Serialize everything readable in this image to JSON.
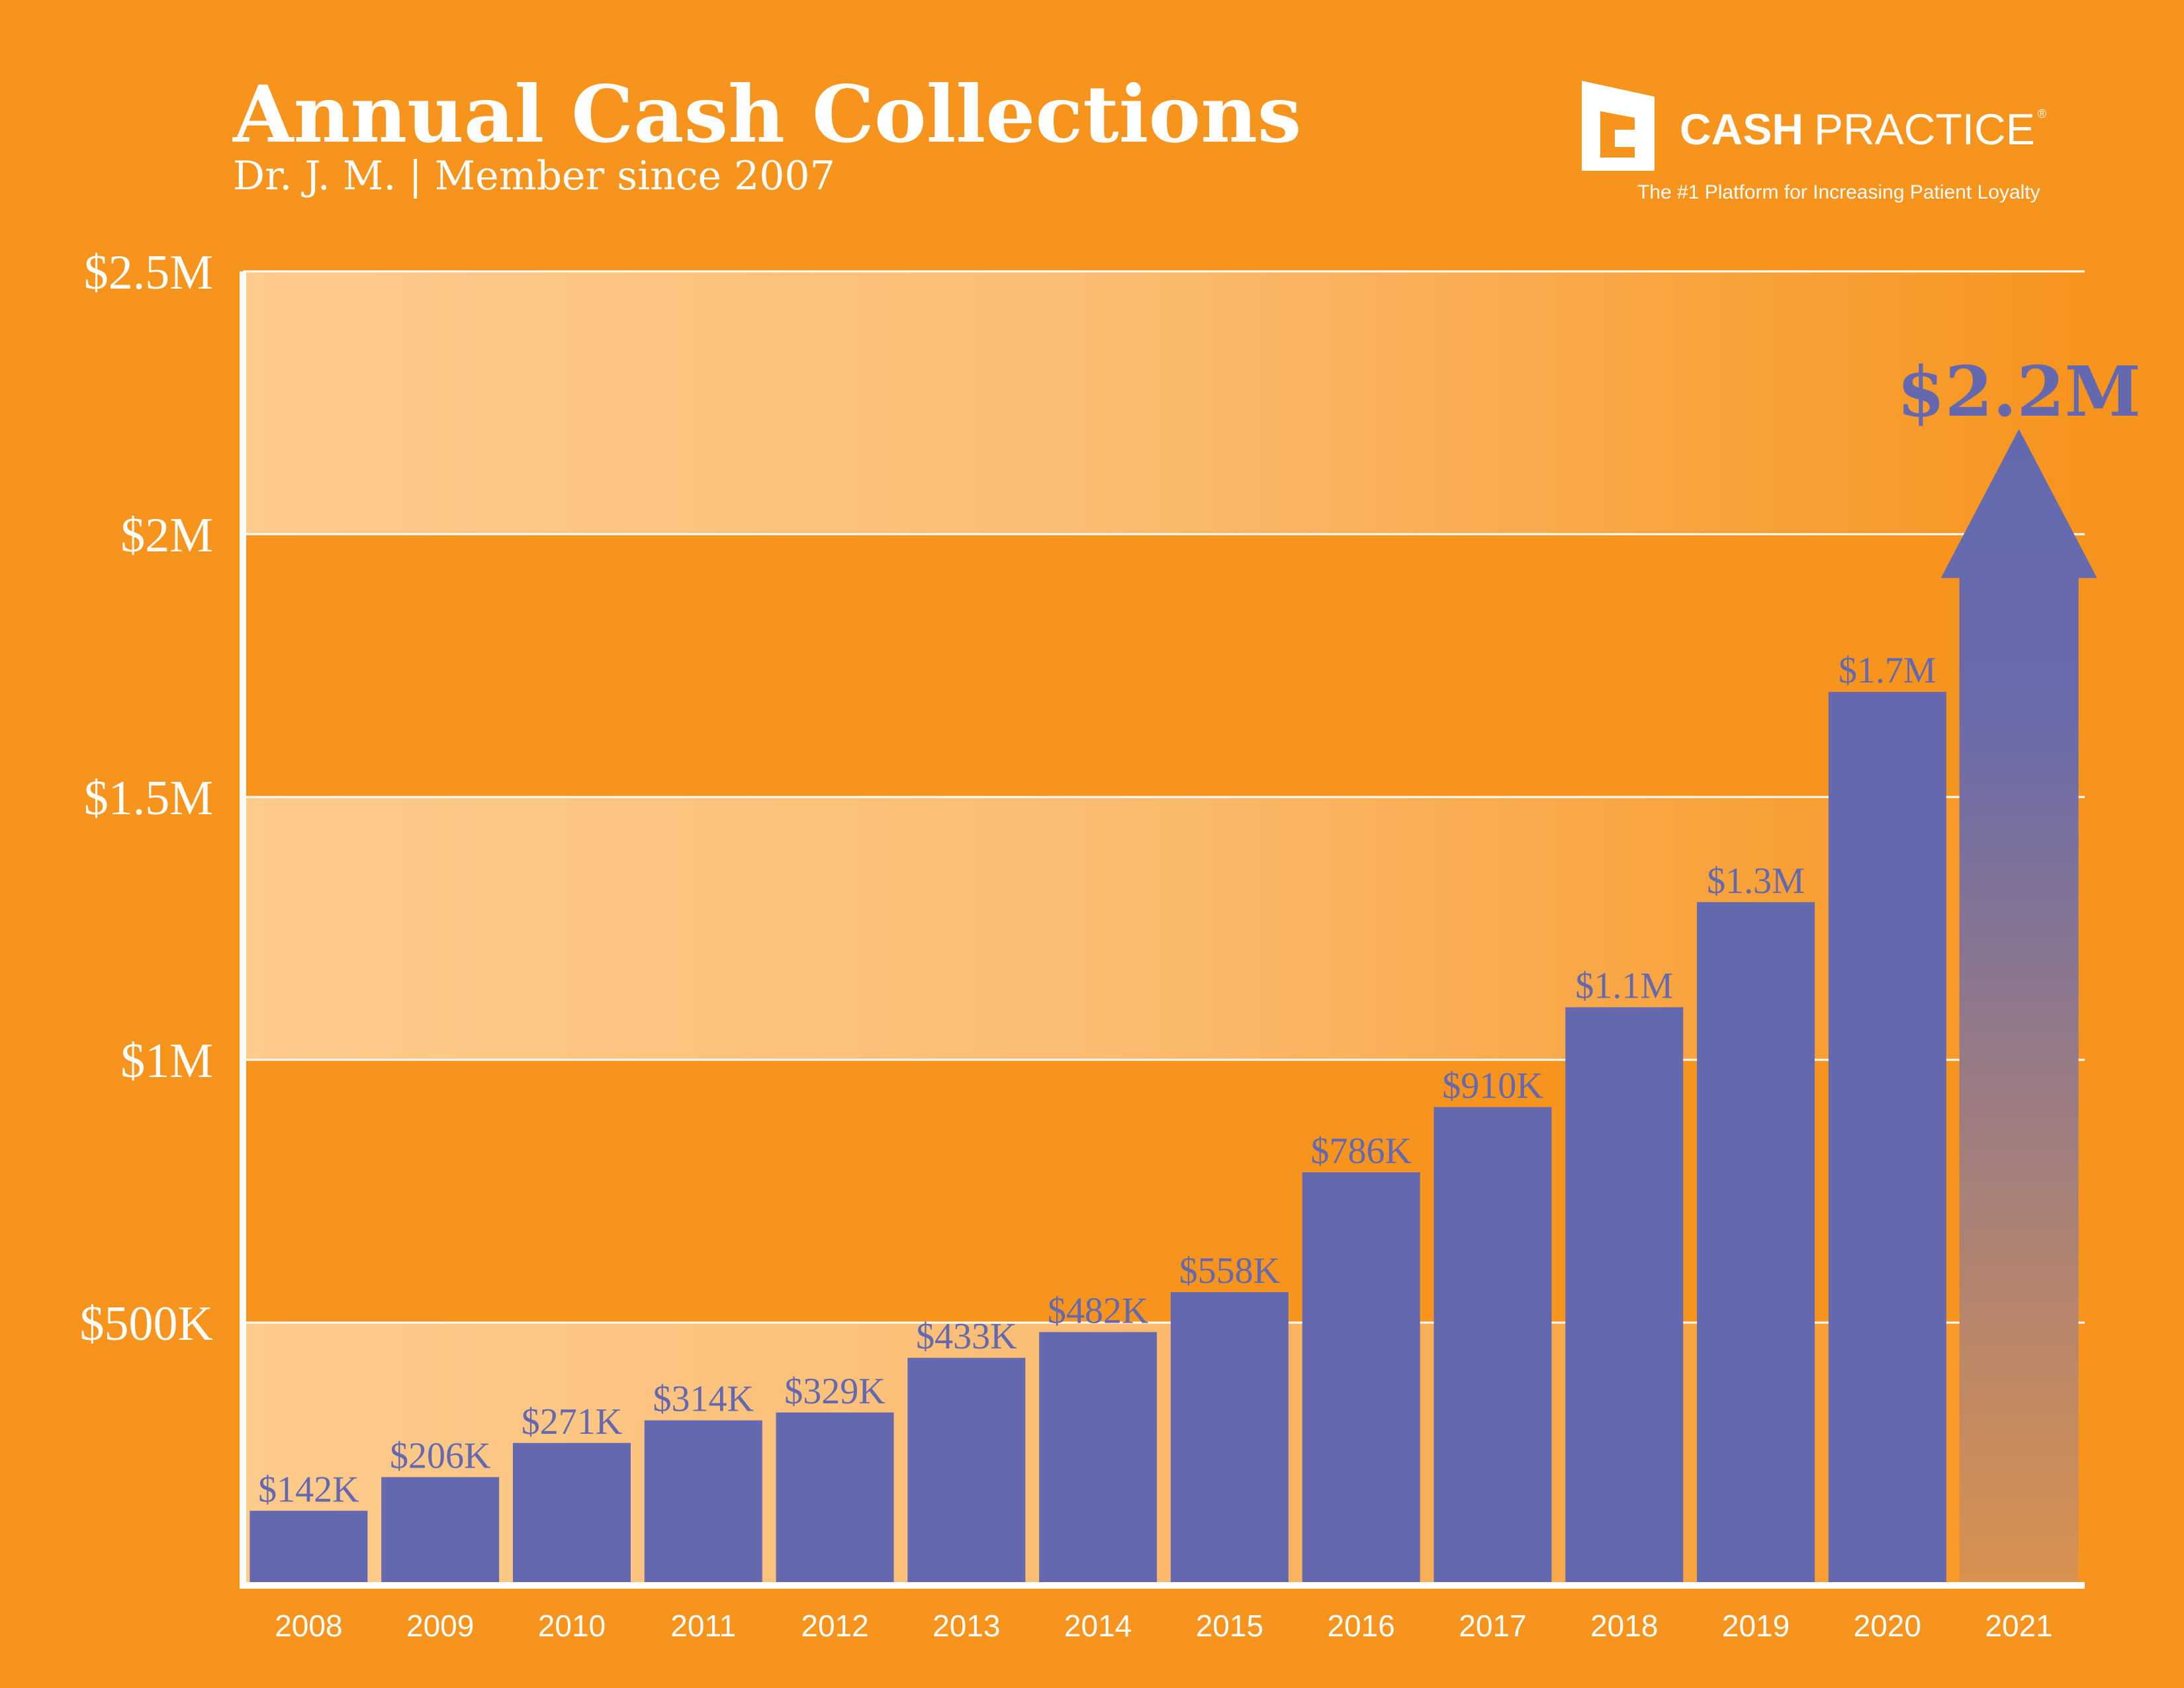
{
  "header": {
    "title": "Annual Cash Collections",
    "subtitle": "Dr. J. M. | Member since 2007"
  },
  "logo": {
    "icon": "cash-practice-logo-icon",
    "name_bold": "CASH",
    "name_light": "PRACTICE",
    "registered": "®",
    "tagline": "The #1 Platform for Increasing Patient Loyalty"
  },
  "colors": {
    "background": "#F7941D",
    "bar": "#6469AF",
    "band_light": "#FDCB8C",
    "grid": "#ffffff",
    "arrow_top": "#6469AF",
    "arrow_bottom": "#D9914F"
  },
  "chart_data": {
    "type": "bar",
    "title": "Annual Cash Collections",
    "categories": [
      "2008",
      "2009",
      "2010",
      "2011",
      "2012",
      "2013",
      "2014",
      "2015",
      "2016",
      "2017",
      "2018",
      "2019",
      "2020",
      "2021"
    ],
    "values": [
      142000,
      206000,
      271000,
      314000,
      329000,
      433000,
      482000,
      558000,
      786000,
      910000,
      1100000,
      1300000,
      1700000,
      2200000
    ],
    "data_labels": [
      "$142K",
      "$206K",
      "$271K",
      "$314K",
      "$329K",
      "$433K",
      "$482K",
      "$558K",
      "$786K",
      "$910K",
      "$1.1M",
      "$1.3M",
      "$1.7M",
      "$2.2M"
    ],
    "projected_last": true,
    "ylim": [
      0,
      2500000
    ],
    "yticks": [
      500000,
      1000000,
      1500000,
      2000000,
      2500000
    ],
    "ytick_labels": [
      "$500K",
      "$1M",
      "$1.5M",
      "$2M",
      "$2.5M"
    ],
    "grid": true,
    "xlabel": "",
    "ylabel": ""
  }
}
